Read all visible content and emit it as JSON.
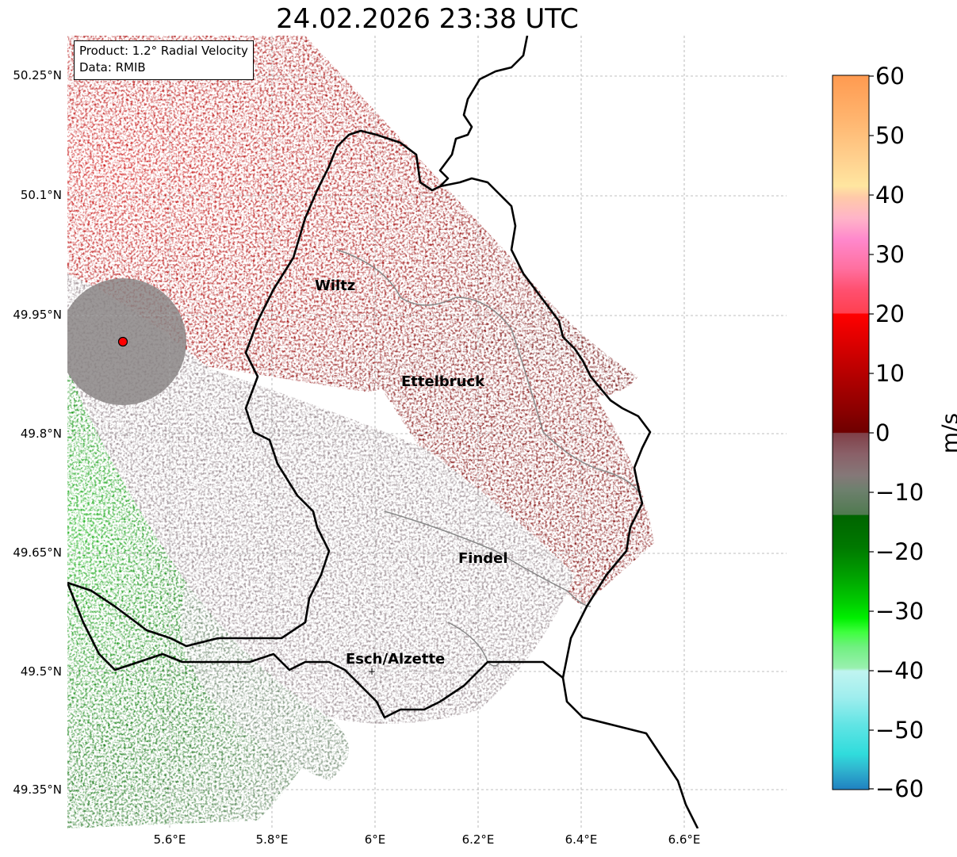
{
  "title": "24.02.2026 23:38 UTC",
  "info": {
    "product": "Product: 1.2° Radial Velocity",
    "source": "Data: RMIB"
  },
  "map": {
    "lon_range": [
      5.4,
      6.8
    ],
    "lat_range": [
      49.3,
      50.3
    ],
    "grid": true,
    "lat_ticks": [
      "50.25°N",
      "50.1°N",
      "49.95°N",
      "49.8°N",
      "49.65°N",
      "49.5°N",
      "49.35°N"
    ],
    "lat_values": [
      50.25,
      50.1,
      49.95,
      49.8,
      49.65,
      49.5,
      49.35
    ],
    "lon_ticks": [
      "5.6°E",
      "5.8°E",
      "6°E",
      "6.2°E",
      "6.4°E",
      "6.6°E"
    ],
    "lon_values": [
      5.6,
      5.8,
      6.0,
      6.2,
      6.4,
      6.6
    ],
    "radar_site": {
      "lon": 5.505,
      "lat": 49.914,
      "color": "#ff0000"
    },
    "cities": [
      {
        "name": "Wiltz",
        "lon": 5.93,
        "lat": 49.97
      },
      {
        "name": "Ettelbruck",
        "lon": 6.1,
        "lat": 49.85
      },
      {
        "name": "Findel",
        "lon": 6.21,
        "lat": 49.64
      },
      {
        "name": "Esch/Alzette",
        "lon": 5.98,
        "lat": 49.5
      }
    ]
  },
  "colorbar": {
    "unit": "m/s",
    "range": [
      -60,
      60
    ],
    "ticks": [
      "60",
      "50",
      "40",
      "30",
      "20",
      "10",
      "0",
      "−10",
      "−20",
      "−30",
      "−40",
      "−50",
      "−60"
    ],
    "tick_values": [
      60,
      50,
      40,
      30,
      20,
      10,
      0,
      -10,
      -20,
      -30,
      -40,
      -50,
      -60
    ],
    "colors": {
      "outbound_strong": "#ff9a50",
      "outbound_light": "#ffe09a",
      "pink": "#ff88cc",
      "red": "#ee0000",
      "dark_red": "#7a0000",
      "near_zero": "#8a7a80",
      "gray_green": "#5e7a5e",
      "dark_green": "#006400",
      "green": "#00dd00",
      "light_green": "#88ee99",
      "light_cyan": "#b0f0f0",
      "cyan": "#30dddd",
      "blue": "#2080c0"
    }
  }
}
